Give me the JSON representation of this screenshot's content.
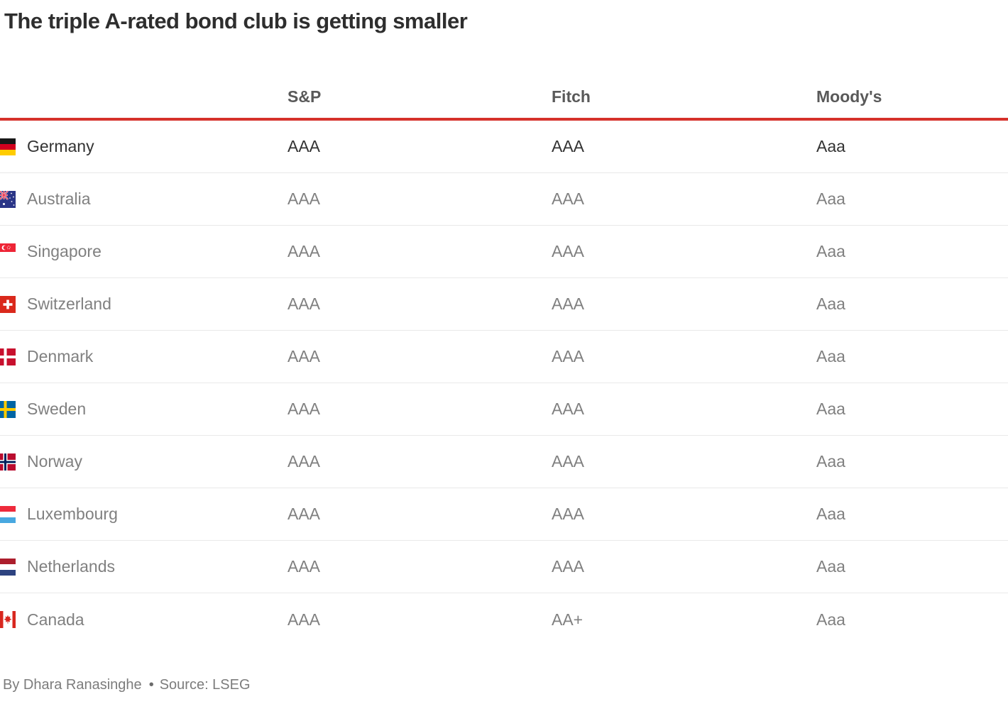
{
  "title": "The triple A-rated bond club is getting smaller",
  "chart_data": {
    "type": "table",
    "title": "The triple A-rated bond club is getting smaller",
    "columns": [
      "",
      "S&P",
      "Fitch",
      "Moody's"
    ],
    "rows": [
      {
        "country": "Germany",
        "sp": "AAA",
        "fitch": "AAA",
        "moodys": "Aaa"
      },
      {
        "country": "Australia",
        "sp": "AAA",
        "fitch": "AAA",
        "moodys": "Aaa"
      },
      {
        "country": "Singapore",
        "sp": "AAA",
        "fitch": "AAA",
        "moodys": "Aaa"
      },
      {
        "country": "Switzerland",
        "sp": "AAA",
        "fitch": "AAA",
        "moodys": "Aaa"
      },
      {
        "country": "Denmark",
        "sp": "AAA",
        "fitch": "AAA",
        "moodys": "Aaa"
      },
      {
        "country": "Sweden",
        "sp": "AAA",
        "fitch": "AAA",
        "moodys": "Aaa"
      },
      {
        "country": "Norway",
        "sp": "AAA",
        "fitch": "AAA",
        "moodys": "Aaa"
      },
      {
        "country": "Luxembourg",
        "sp": "AAA",
        "fitch": "AAA",
        "moodys": "Aaa"
      },
      {
        "country": "Netherlands",
        "sp": "AAA",
        "fitch": "AAA",
        "moodys": "Aaa"
      },
      {
        "country": "Canada",
        "sp": "AAA",
        "fitch": "AA+",
        "moodys": "Aaa"
      }
    ]
  },
  "table": {
    "columns": [
      "S&P",
      "Fitch",
      "Moody's"
    ],
    "rows": [
      {
        "country": "Germany",
        "flag": "germany",
        "ratings": {
          "sp": "AAA",
          "fitch": "AAA",
          "moodys": "Aaa"
        },
        "highlight": true
      },
      {
        "country": "Australia",
        "flag": "australia",
        "ratings": {
          "sp": "AAA",
          "fitch": "AAA",
          "moodys": "Aaa"
        },
        "highlight": false
      },
      {
        "country": "Singapore",
        "flag": "singapore",
        "ratings": {
          "sp": "AAA",
          "fitch": "AAA",
          "moodys": "Aaa"
        },
        "highlight": false
      },
      {
        "country": "Switzerland",
        "flag": "switzerland",
        "ratings": {
          "sp": "AAA",
          "fitch": "AAA",
          "moodys": "Aaa"
        },
        "highlight": false
      },
      {
        "country": "Denmark",
        "flag": "denmark",
        "ratings": {
          "sp": "AAA",
          "fitch": "AAA",
          "moodys": "Aaa"
        },
        "highlight": false
      },
      {
        "country": "Sweden",
        "flag": "sweden",
        "ratings": {
          "sp": "AAA",
          "fitch": "AAA",
          "moodys": "Aaa"
        },
        "highlight": false
      },
      {
        "country": "Norway",
        "flag": "norway",
        "ratings": {
          "sp": "AAA",
          "fitch": "AAA",
          "moodys": "Aaa"
        },
        "highlight": false
      },
      {
        "country": "Luxembourg",
        "flag": "luxembourg",
        "ratings": {
          "sp": "AAA",
          "fitch": "AAA",
          "moodys": "Aaa"
        },
        "highlight": false
      },
      {
        "country": "Netherlands",
        "flag": "netherlands",
        "ratings": {
          "sp": "AAA",
          "fitch": "AAA",
          "moodys": "Aaa"
        },
        "highlight": false
      },
      {
        "country": "Canada",
        "flag": "canada",
        "ratings": {
          "sp": "AAA",
          "fitch": "AA+",
          "moodys": "Aaa"
        },
        "highlight": false
      }
    ]
  },
  "footer": {
    "byline": "By Dhara Ranasinghe",
    "separator": "•",
    "source": "Source: LSEG"
  },
  "colors": {
    "accent_red": "#d6312b",
    "text_dark": "#333333",
    "text_gray": "#808080",
    "header_gray": "#595959",
    "divider": "#e9e9e9",
    "title": "#2e2e2e"
  }
}
